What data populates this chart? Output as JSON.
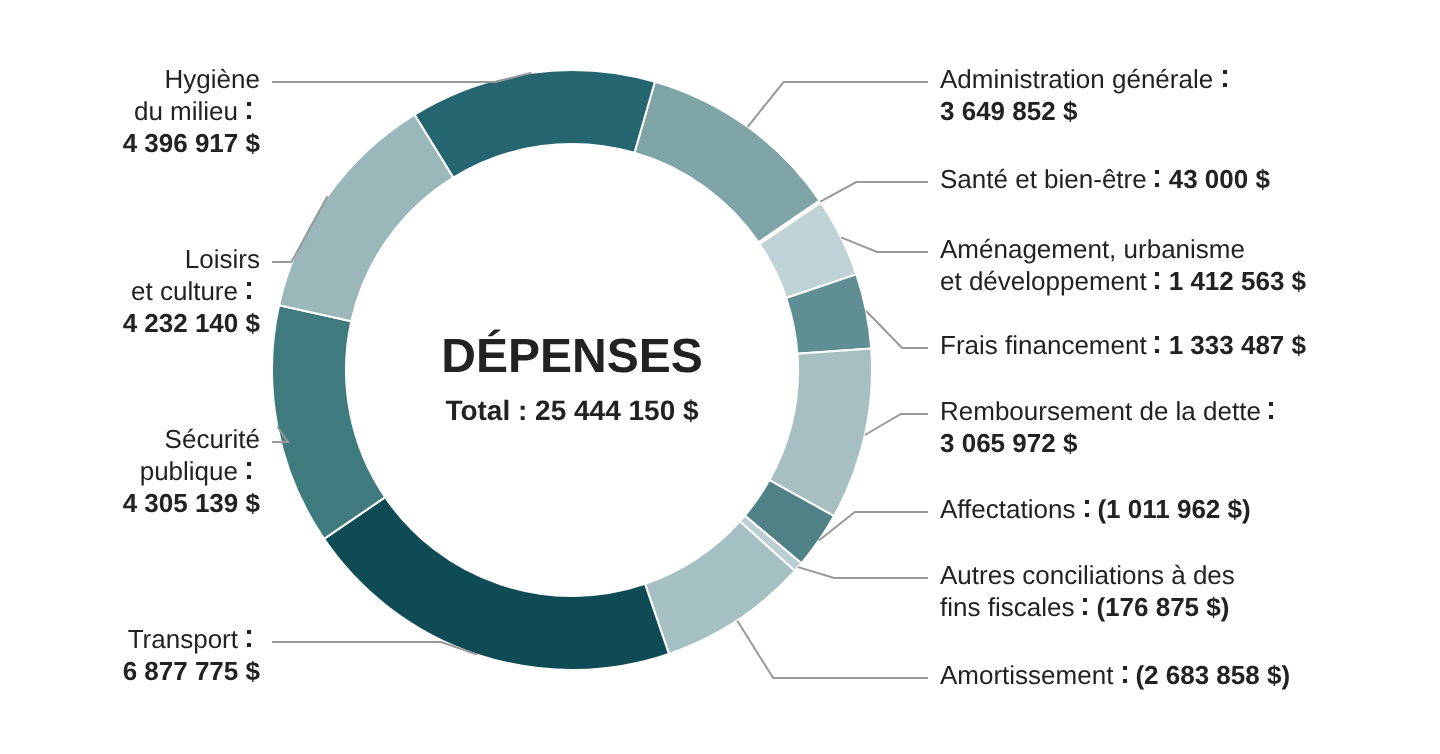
{
  "chart_data": {
    "type": "donut",
    "title": "DÉPENSES",
    "subtitle": "Total : 25 444 150 $",
    "categories": [
      "Administration générale",
      "Santé et bien-être",
      "Aménagement, urbanisme et développement",
      "Frais financement",
      "Remboursement de la dette",
      "Affectations",
      "Autres conciliations à des fins fiscales",
      "Amortissement",
      "Transport",
      "Sécurité publique",
      "Loisirs et culture",
      "Hygiène du milieu"
    ],
    "values": [
      3649852,
      43000,
      1412563,
      1333487,
      3065972,
      1011962,
      176875,
      2683858,
      6877775,
      4305139,
      4232140,
      4396917
    ],
    "value_labels": [
      "3 649 852 $",
      "43 000 $",
      "1 412 563 $",
      "1 333 487 $",
      "3 065 972 $",
      "(1 011 962 $)",
      "(176 875 $)",
      "(2 683 858 $)",
      "6 877 775 $",
      "4 305 139 $",
      "4 232 140 $",
      "4 396 917 $"
    ],
    "colors": [
      "#7fa4a6",
      "#b9cfd1",
      "#bfd2d5",
      "#5f8f94",
      "#a6c0c2",
      "#4f8186",
      "#b9cfd1",
      "#a4c0c2",
      "#0f4b54",
      "#3f7a7e",
      "#9ab8ba",
      "#246570"
    ]
  }
}
